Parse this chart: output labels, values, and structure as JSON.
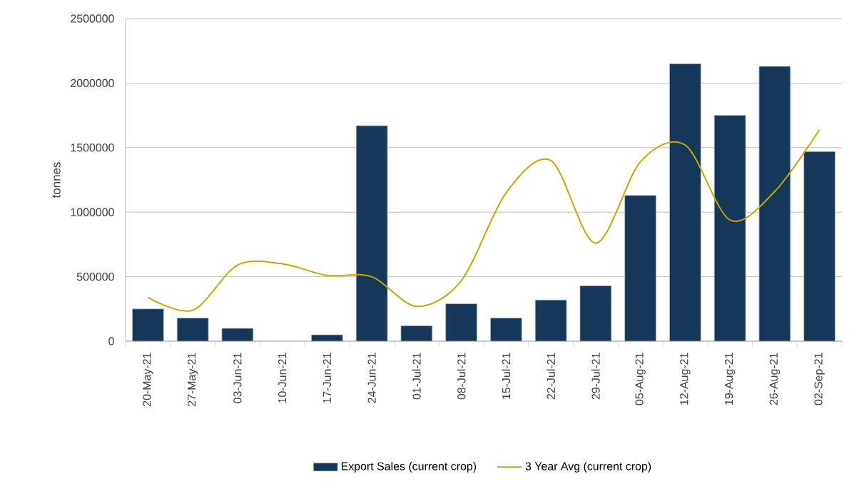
{
  "chart_data": {
    "type": "bar",
    "ylabel": "tonnes",
    "categories": [
      "20-May-21",
      "27-May-21",
      "03-Jun-21",
      "10-Jun-21",
      "17-Jun-21",
      "24-Jun-21",
      "01-Jul-21",
      "08-Jul-21",
      "15-Jul-21",
      "22-Jul-21",
      "29-Jul-21",
      "05-Aug-21",
      "12-Aug-21",
      "19-Aug-21",
      "26-Aug-21",
      "02-Sep-21"
    ],
    "series": [
      {
        "name": "Export Sales (current crop)",
        "color": "#14375a",
        "values": [
          250000,
          180000,
          100000,
          0,
          50000,
          1670000,
          120000,
          290000,
          180000,
          320000,
          430000,
          1130000,
          2150000,
          1750000,
          2130000,
          1470000
        ]
      },
      {
        "name": "3 Year Avg (current crop)",
        "type": "line",
        "color": "#c8a800",
        "values": [
          340000,
          240000,
          590000,
          600000,
          510000,
          500000,
          270000,
          470000,
          1150000,
          1400000,
          760000,
          1390000,
          1520000,
          940000,
          1160000,
          1640000
        ]
      }
    ],
    "ylim": [
      0,
      2500000
    ],
    "yticks": [
      0,
      500000,
      1000000,
      1500000,
      2000000,
      2500000
    ],
    "grid": "y",
    "legend": "bottom"
  }
}
